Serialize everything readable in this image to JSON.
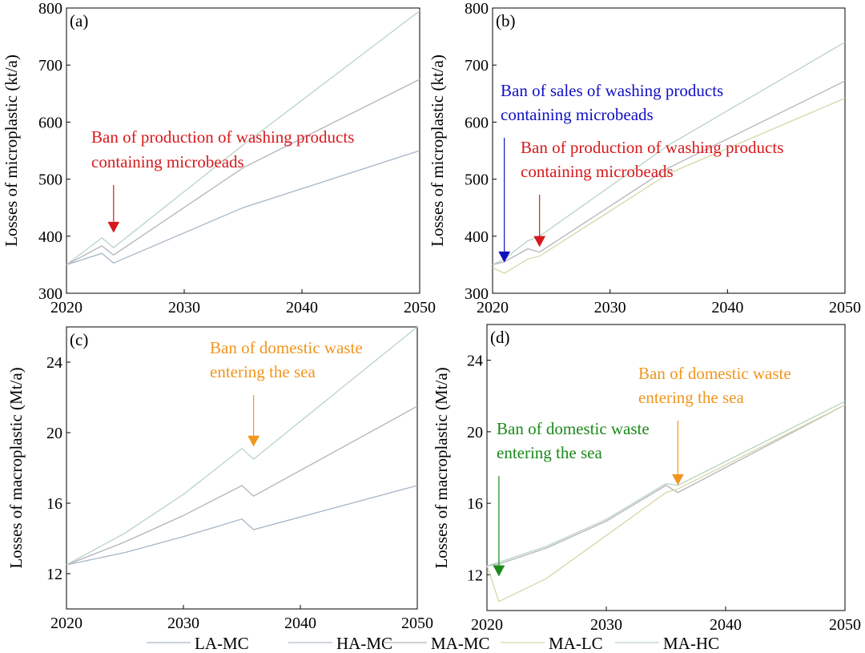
{
  "chart_data": [
    {
      "type": "line",
      "panel": "(a)",
      "title": "",
      "xlabel": "",
      "ylabel": "Losses of microplastic (kt/a)",
      "xlim": [
        2020,
        2050
      ],
      "ylim": [
        300,
        800
      ],
      "xticks": [
        2020,
        2030,
        2040,
        2050
      ],
      "yticks": [
        300,
        400,
        500,
        600,
        700,
        800
      ],
      "series": [
        {
          "name": "LA-MC",
          "color": "#a6b6c6",
          "points": [
            [
              2020,
              350
            ],
            [
              2023,
              370
            ],
            [
              2024,
              353
            ],
            [
              2035,
              450
            ],
            [
              2050,
              550
            ]
          ]
        },
        {
          "name": "MA-MC",
          "color": "#b3b3bd",
          "points": [
            [
              2020,
              350
            ],
            [
              2023,
              383
            ],
            [
              2024,
              367
            ],
            [
              2035,
              520
            ],
            [
              2050,
              675
            ]
          ]
        },
        {
          "name": "MA-HC",
          "color": "#b8d4c2",
          "points": [
            [
              2020,
              350
            ],
            [
              2023,
              397
            ],
            [
              2024,
              380
            ],
            [
              2035,
              560
            ],
            [
              2050,
              795
            ]
          ]
        }
      ],
      "annotations": [
        {
          "lines": [
            "Ban of production of washing products",
            "containing microbeads"
          ],
          "color": "#d7191c",
          "arrow_x": 2024,
          "arrow_y": 415
        }
      ]
    },
    {
      "type": "line",
      "panel": "(b)",
      "title": "",
      "xlabel": "",
      "ylabel": "Losses of microplastic (kt/a)",
      "xlim": [
        2020,
        2050
      ],
      "ylim": [
        300,
        800
      ],
      "xticks": [
        2020,
        2030,
        2040,
        2050
      ],
      "yticks": [
        300,
        400,
        500,
        600,
        700,
        800
      ],
      "series": [
        {
          "name": "MA-MC",
          "color": "#b3b3bd",
          "points": [
            [
              2020,
              350
            ],
            [
              2021,
              355
            ],
            [
              2023,
              378
            ],
            [
              2024,
              372
            ],
            [
              2035,
              520
            ],
            [
              2050,
              672
            ]
          ]
        },
        {
          "name": "MA-LC",
          "color": "#d8d6a8",
          "points": [
            [
              2020,
              345
            ],
            [
              2021,
              335
            ],
            [
              2023,
              360
            ],
            [
              2024,
              365
            ],
            [
              2035,
              510
            ],
            [
              2050,
              642
            ]
          ]
        },
        {
          "name": "MA-HC",
          "color": "#b8d4c2",
          "points": [
            [
              2020,
              350
            ],
            [
              2021,
              360
            ],
            [
              2023,
              392
            ],
            [
              2024,
              400
            ],
            [
              2035,
              560
            ],
            [
              2050,
              740
            ]
          ]
        }
      ],
      "annotations": [
        {
          "lines": [
            "Ban of sales of washing products",
            "containing microbeads"
          ],
          "color": "#1010c0",
          "arrow_x": 2021,
          "arrow_y": 363
        },
        {
          "lines": [
            "Ban of production of washing products",
            "containing microbeads"
          ],
          "color": "#d7191c",
          "arrow_x": 2024,
          "arrow_y": 390
        }
      ]
    },
    {
      "type": "line",
      "panel": "(c)",
      "title": "",
      "xlabel": "",
      "ylabel": "Losses of macroplastic (Mt/a)",
      "xlim": [
        2020,
        2050
      ],
      "ylim": [
        10,
        26
      ],
      "xticks": [
        2020,
        2030,
        2040,
        2050
      ],
      "yticks": [
        12,
        16,
        20,
        24
      ],
      "series": [
        {
          "name": "LA-MC",
          "color": "#a6b6c6",
          "points": [
            [
              2020,
              12.5
            ],
            [
              2025,
              13.2
            ],
            [
              2030,
              14.1
            ],
            [
              2035,
              15.1
            ],
            [
              2036,
              14.5
            ],
            [
              2050,
              17.0
            ]
          ]
        },
        {
          "name": "MA-MC",
          "color": "#b3b3bd",
          "points": [
            [
              2020,
              12.5
            ],
            [
              2025,
              13.8
            ],
            [
              2030,
              15.3
            ],
            [
              2035,
              17.0
            ],
            [
              2036,
              16.4
            ],
            [
              2050,
              21.5
            ]
          ]
        },
        {
          "name": "MA-HC",
          "color": "#b8d4c2",
          "points": [
            [
              2020,
              12.5
            ],
            [
              2025,
              14.3
            ],
            [
              2030,
              16.5
            ],
            [
              2035,
              19.1
            ],
            [
              2036,
              18.5
            ],
            [
              2050,
              26.0
            ]
          ]
        }
      ],
      "annotations": [
        {
          "lines": [
            "Ban of domestic waste",
            "entering the sea"
          ],
          "color": "#f0961e",
          "arrow_x": 2036,
          "arrow_y": 19.5
        }
      ]
    },
    {
      "type": "line",
      "panel": "(d)",
      "title": "",
      "xlabel": "",
      "ylabel": "Losses of macroplastic (Mt/a)",
      "xlim": [
        2020,
        2050
      ],
      "ylim": [
        10,
        26
      ],
      "xticks": [
        2020,
        2030,
        2040,
        2050
      ],
      "yticks": [
        12,
        16,
        20,
        24
      ],
      "series": [
        {
          "name": "MA-MC",
          "color": "#b3b3bd",
          "points": [
            [
              2020,
              12.5
            ],
            [
              2021,
              12.6
            ],
            [
              2025,
              13.5
            ],
            [
              2030,
              15.0
            ],
            [
              2035,
              17.0
            ],
            [
              2036,
              16.6
            ],
            [
              2050,
              21.5
            ]
          ]
        },
        {
          "name": "MA-LC",
          "color": "#d8d6a8",
          "points": [
            [
              2020,
              12.5
            ],
            [
              2021,
              10.5
            ],
            [
              2025,
              11.8
            ],
            [
              2030,
              14.2
            ],
            [
              2035,
              16.6
            ],
            [
              2036,
              16.8
            ],
            [
              2050,
              21.5
            ]
          ]
        },
        {
          "name": "MA-HC",
          "color": "#b8d4c2",
          "points": [
            [
              2020,
              12.5
            ],
            [
              2021,
              12.7
            ],
            [
              2025,
              13.6
            ],
            [
              2030,
              15.1
            ],
            [
              2035,
              17.1
            ],
            [
              2036,
              17.0
            ],
            [
              2050,
              21.7
            ]
          ]
        }
      ],
      "annotations": [
        {
          "lines": [
            "Ban of domestic waste",
            "entering the sea"
          ],
          "color": "#f0961e",
          "arrow_x": 2036,
          "arrow_y": 17.3
        },
        {
          "lines": [
            "Ban of domestic waste",
            "entering the sea"
          ],
          "color": "#1a8a1a",
          "arrow_x": 2021,
          "arrow_y": 12.2
        }
      ]
    }
  ],
  "legend": [
    {
      "name": "LA-MC",
      "color": "#a6b6c6"
    },
    {
      "name": "HA-MC",
      "color": "#b0bcc6"
    },
    {
      "name": "MA-MC",
      "color": "#b3b3bd"
    },
    {
      "name": "MA-LC",
      "color": "#d8d6a8"
    },
    {
      "name": "MA-HC",
      "color": "#b8d4c2"
    }
  ]
}
